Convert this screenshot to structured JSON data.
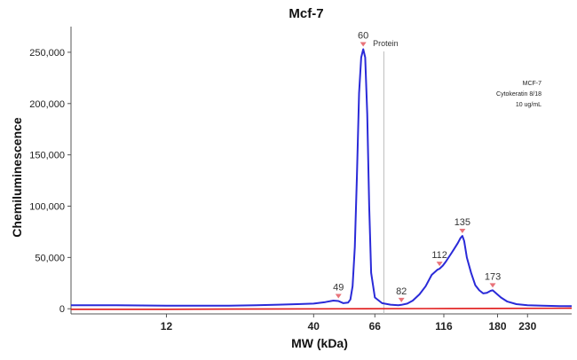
{
  "chart_data": {
    "type": "line",
    "title": "Mcf-7",
    "xlabel": "MW (kDa)",
    "ylabel": "Chemiluminescence",
    "ylim": [
      -5000,
      275000
    ],
    "yticks": [
      0,
      50000,
      100000,
      150000,
      200000,
      250000
    ],
    "ytick_labels": [
      "0",
      "50,000",
      "100,000",
      "150,000",
      "200,000",
      "250,000"
    ],
    "xticks": [
      12,
      40,
      66,
      116,
      180,
      230
    ],
    "xtick_labels": [
      "12",
      "40",
      "66",
      "116",
      "180",
      "230"
    ],
    "x_scale": "log",
    "xlim": [
      5.5,
      330
    ],
    "series": [
      {
        "color": "#2a2ad8",
        "x": [
          5.5,
          8,
          12,
          16,
          20,
          25,
          30,
          35,
          40,
          44,
          47,
          49,
          51,
          53,
          54,
          55,
          56,
          57,
          58,
          59,
          60,
          61,
          62,
          63,
          64,
          66,
          70,
          75,
          80,
          82,
          86,
          90,
          95,
          100,
          105,
          110,
          112,
          115,
          118,
          122,
          126,
          130,
          133,
          135,
          137,
          140,
          145,
          150,
          155,
          160,
          165,
          170,
          173,
          178,
          185,
          195,
          210,
          230,
          260,
          300,
          330
        ],
        "y": [
          3500,
          3500,
          3000,
          3000,
          3000,
          3500,
          4000,
          4500,
          5000,
          6500,
          8000,
          7500,
          5500,
          6000,
          9000,
          22000,
          60000,
          130000,
          210000,
          245000,
          253000,
          245000,
          190000,
          100000,
          35000,
          11000,
          5500,
          4000,
          3500,
          3800,
          5000,
          8000,
          14000,
          22000,
          33000,
          38000,
          39000,
          42000,
          46000,
          52000,
          58000,
          64000,
          69000,
          71000,
          66000,
          50000,
          35000,
          23000,
          18000,
          15000,
          15500,
          17500,
          18000,
          15000,
          11000,
          7000,
          4500,
          3500,
          3000,
          2500,
          2500
        ]
      },
      {
        "color": "#e01818",
        "x": [
          5.5,
          12,
          30,
          60,
          100,
          180,
          330
        ],
        "y": [
          -500,
          -500,
          -200,
          0,
          200,
          400,
          500
        ]
      }
    ],
    "peaks": [
      {
        "x": 49,
        "y": 7500,
        "label": "49"
      },
      {
        "x": 60,
        "y": 253000,
        "label": "60"
      },
      {
        "x": 82,
        "y": 3800,
        "label": "82"
      },
      {
        "x": 112,
        "y": 39000,
        "label": "112"
      },
      {
        "x": 135,
        "y": 71000,
        "label": "135"
      },
      {
        "x": 173,
        "y": 18000,
        "label": "173"
      }
    ],
    "marker_line": {
      "x": 71,
      "label": "Protein"
    },
    "legend": {
      "position": "top-right",
      "lines": [
        "MCF-7",
        "Cytokeratin 8/18",
        "10 ug/mL"
      ]
    }
  }
}
